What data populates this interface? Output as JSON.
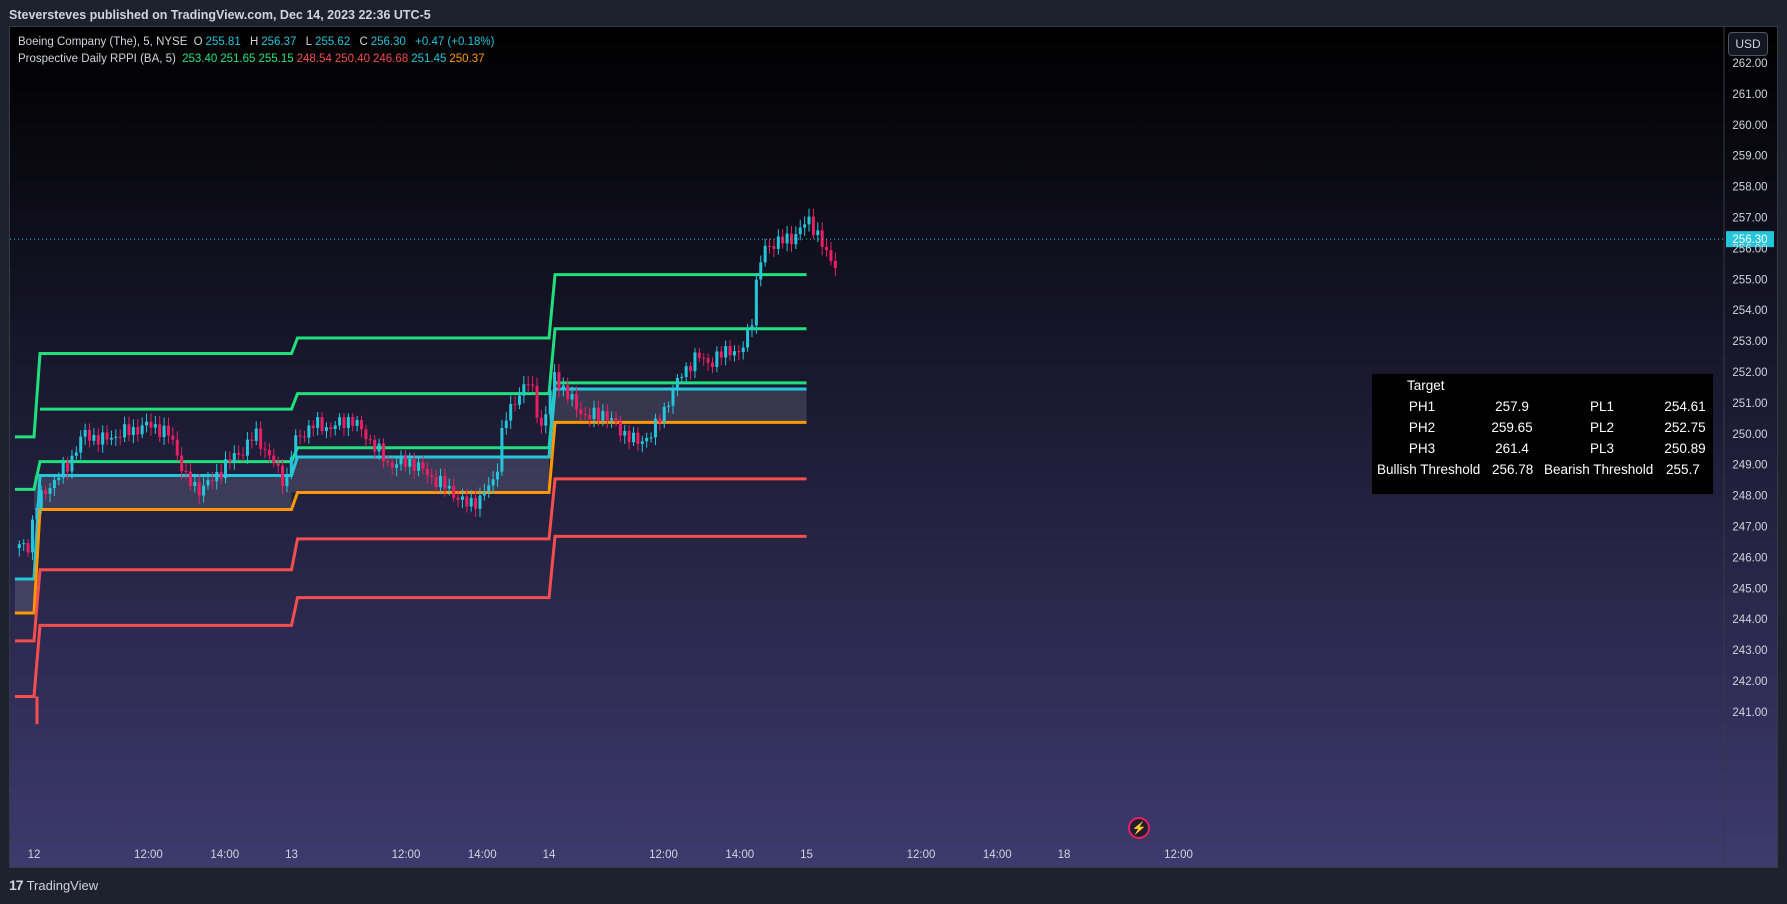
{
  "header": {
    "publisher_text": "Steversteves published on TradingView.com, Dec 14, 2023 22:36 UTC-5"
  },
  "legend": {
    "symbol_text": "Boeing Company (The), 5, NYSE",
    "o_label": "O",
    "o_value": "255.81",
    "h_label": "H",
    "h_value": "256.37",
    "l_label": "L",
    "l_value": "255.62",
    "c_label": "C",
    "c_value": "256.30",
    "change": "+0.47 (+0.18%)",
    "indicator_name": "Prospective Daily RPPI (BA, 5)",
    "indicator_values": [
      {
        "value": "253.40",
        "color": "#26e07f"
      },
      {
        "value": "251.65",
        "color": "#26e07f"
      },
      {
        "value": "255.15",
        "color": "#26e07f"
      },
      {
        "value": "248.54",
        "color": "#f44e4e"
      },
      {
        "value": "250.40",
        "color": "#f44e4e"
      },
      {
        "value": "246.68",
        "color": "#f44e4e"
      },
      {
        "value": "251.45",
        "color": "#26c6da"
      },
      {
        "value": "250.37",
        "color": "#ff9800"
      }
    ]
  },
  "currency_button": "USD",
  "target_table": {
    "title": "Target",
    "rows": [
      [
        "PH1",
        "257.9",
        "PL1",
        "254.61"
      ],
      [
        "PH2",
        "259.65",
        "PL2",
        "252.75"
      ],
      [
        "PH3",
        "261.4",
        "PL3",
        "250.89"
      ],
      [
        "Bullish Threshold",
        "256.78",
        "Bearish Threshold",
        "255.7"
      ]
    ]
  },
  "footer": {
    "logo_mark": "17",
    "brand": "TradingView"
  },
  "colors": {
    "green": "#1fe07c",
    "red": "#f44e4e",
    "cyan": "#26c6da",
    "orange": "#ff9800",
    "candle_up": "#26c6da",
    "candle_down": "#e91e63",
    "bg_top": "#000000",
    "bg_bottom": "#3d3a6e"
  },
  "chart_data": {
    "type": "line",
    "ylim": [
      240.5,
      262.5
    ],
    "y_ticks": [
      "241.00",
      "242.00",
      "243.00",
      "244.00",
      "245.00",
      "246.00",
      "247.00",
      "248.00",
      "249.00",
      "250.00",
      "251.00",
      "252.00",
      "253.00",
      "254.00",
      "255.00",
      "256.00",
      "257.00",
      "258.00",
      "259.00",
      "260.00",
      "261.00",
      "262.00"
    ],
    "x_labels": [
      {
        "t": 0.0,
        "label": "12"
      },
      {
        "t": 3.0,
        "label": "12:00"
      },
      {
        "t": 5.0,
        "label": "14:00"
      },
      {
        "t": 6.75,
        "label": "13"
      },
      {
        "t": 9.75,
        "label": "12:00"
      },
      {
        "t": 11.75,
        "label": "14:00"
      },
      {
        "t": 13.5,
        "label": "14"
      },
      {
        "t": 16.5,
        "label": "12:00"
      },
      {
        "t": 18.5,
        "label": "14:00"
      },
      {
        "t": 20.25,
        "label": "15"
      },
      {
        "t": 23.25,
        "label": "12:00"
      },
      {
        "t": 25.25,
        "label": "14:00"
      },
      {
        "t": 27.0,
        "label": "18"
      },
      {
        "t": 30.0,
        "label": "12:00"
      }
    ],
    "last_price": {
      "value": 256.3,
      "label": "256.30"
    },
    "pivot_days": [
      {
        "name": "prior",
        "t_start": -0.5,
        "t_end": 0.0,
        "ph3": 249.9,
        "ph1": 248.2,
        "bull": 245.3,
        "bear": 244.2,
        "pl1": 243.3,
        "pl3": 241.5
      },
      {
        "name": "Dec 12",
        "t_start": 0.0,
        "t_end": 6.75,
        "ph3": 252.6,
        "ph2": 250.8,
        "ph1": 249.1,
        "bull": 248.65,
        "bear": 247.55,
        "pl1": 245.6,
        "pl3": 243.8
      },
      {
        "name": "Dec 13",
        "t_start": 6.75,
        "t_end": 13.5,
        "ph3": 253.1,
        "ph2": 251.3,
        "ph1": 249.55,
        "bull": 249.25,
        "bear": 248.1,
        "pl1": 246.6,
        "pl3": 244.7
      },
      {
        "name": "Dec 14",
        "t_start": 13.5,
        "t_end": 20.25,
        "ph3": 255.15,
        "ph2": 253.4,
        "ph1": 251.65,
        "bull": 251.45,
        "bear": 250.37,
        "pl1": 248.54,
        "pl3": 246.68
      }
    ],
    "price_path": [
      {
        "t": -0.5,
        "v": 246.3
      },
      {
        "t": -0.1,
        "v": 246.4
      },
      {
        "t": 0.0,
        "v": 247.6
      },
      {
        "t": 0.4,
        "v": 248.3
      },
      {
        "t": 0.9,
        "v": 249.0
      },
      {
        "t": 1.3,
        "v": 250.0
      },
      {
        "t": 1.8,
        "v": 249.8
      },
      {
        "t": 2.5,
        "v": 250.1
      },
      {
        "t": 3.1,
        "v": 250.3
      },
      {
        "t": 3.6,
        "v": 249.9
      },
      {
        "t": 4.0,
        "v": 248.5
      },
      {
        "t": 4.3,
        "v": 248.2
      },
      {
        "t": 4.7,
        "v": 248.5
      },
      {
        "t": 5.0,
        "v": 249.0
      },
      {
        "t": 5.5,
        "v": 249.5
      },
      {
        "t": 5.8,
        "v": 250.0
      },
      {
        "t": 6.2,
        "v": 249.2
      },
      {
        "t": 6.6,
        "v": 248.4
      },
      {
        "t": 6.8,
        "v": 249.7
      },
      {
        "t": 7.3,
        "v": 250.3
      },
      {
        "t": 7.8,
        "v": 250.2
      },
      {
        "t": 8.3,
        "v": 250.5
      },
      {
        "t": 8.8,
        "v": 249.8
      },
      {
        "t": 9.3,
        "v": 249.0
      },
      {
        "t": 9.9,
        "v": 249.1
      },
      {
        "t": 10.4,
        "v": 248.6
      },
      {
        "t": 10.9,
        "v": 248.2
      },
      {
        "t": 11.3,
        "v": 247.7
      },
      {
        "t": 11.7,
        "v": 247.9
      },
      {
        "t": 12.1,
        "v": 248.6
      },
      {
        "t": 12.3,
        "v": 250.3
      },
      {
        "t": 12.7,
        "v": 251.3
      },
      {
        "t": 13.0,
        "v": 251.7
      },
      {
        "t": 13.3,
        "v": 250.2
      },
      {
        "t": 13.5,
        "v": 251.0
      },
      {
        "t": 13.6,
        "v": 252.0
      },
      {
        "t": 14.0,
        "v": 251.2
      },
      {
        "t": 14.5,
        "v": 250.5
      },
      {
        "t": 14.9,
        "v": 250.7
      },
      {
        "t": 15.3,
        "v": 250.2
      },
      {
        "t": 15.8,
        "v": 249.7
      },
      {
        "t": 16.2,
        "v": 250.0
      },
      {
        "t": 16.6,
        "v": 251.0
      },
      {
        "t": 17.0,
        "v": 252.0
      },
      {
        "t": 17.4,
        "v": 252.5
      },
      {
        "t": 17.8,
        "v": 252.3
      },
      {
        "t": 18.2,
        "v": 252.8
      },
      {
        "t": 18.5,
        "v": 252.5
      },
      {
        "t": 18.8,
        "v": 253.6
      },
      {
        "t": 19.0,
        "v": 255.4
      },
      {
        "t": 19.2,
        "v": 256.1
      },
      {
        "t": 19.5,
        "v": 256.2
      },
      {
        "t": 19.8,
        "v": 256.3
      },
      {
        "t": 20.0,
        "v": 256.5
      },
      {
        "t": 20.3,
        "v": 256.9
      },
      {
        "t": 20.5,
        "v": 256.6
      },
      {
        "t": 20.8,
        "v": 255.7
      },
      {
        "t": 21.0,
        "v": 255.5
      },
      {
        "t": 21.1,
        "v": 256.3
      }
    ]
  }
}
